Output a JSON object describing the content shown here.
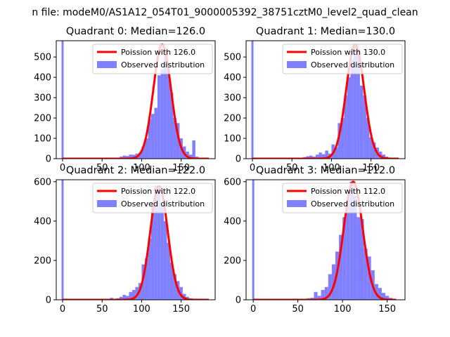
{
  "figure": {
    "suptitle": "n file: modeM0/AS1A12_054T01_9000005392_38751cztM0_level2_quad_clean"
  },
  "colors": {
    "fit": "#ff0000",
    "hist": "#8080ff",
    "axes": "#000000"
  },
  "chart_data": [
    {
      "type": "bar",
      "title": "Quadrant 0: Median=126.0",
      "median": 126.0,
      "xlim": [
        -8,
        193
      ],
      "ylim": [
        0,
        580
      ],
      "xticks": [
        0,
        50,
        100,
        150
      ],
      "yticks": [
        0,
        100,
        200,
        300,
        400,
        500
      ],
      "legend": [
        "Poission with 126.0",
        "Observed distribution"
      ],
      "legend_position": "top-right",
      "spike": {
        "x": 0,
        "value": 580
      },
      "hist_bins": [
        [
          0,
          4,
          3
        ],
        [
          4,
          8,
          1
        ],
        [
          8,
          12,
          1
        ],
        [
          12,
          16,
          1
        ],
        [
          16,
          20,
          1
        ],
        [
          20,
          24,
          1
        ],
        [
          24,
          28,
          1
        ],
        [
          28,
          32,
          1
        ],
        [
          32,
          36,
          1
        ],
        [
          36,
          40,
          1
        ],
        [
          40,
          44,
          1
        ],
        [
          44,
          48,
          1
        ],
        [
          48,
          52,
          1
        ],
        [
          52,
          56,
          1
        ],
        [
          56,
          60,
          1
        ],
        [
          60,
          64,
          2
        ],
        [
          64,
          68,
          3
        ],
        [
          68,
          72,
          5
        ],
        [
          72,
          76,
          10
        ],
        [
          76,
          80,
          15
        ],
        [
          80,
          84,
          13
        ],
        [
          84,
          88,
          20
        ],
        [
          88,
          92,
          19
        ],
        [
          92,
          96,
          25
        ],
        [
          96,
          100,
          30
        ],
        [
          100,
          104,
          60
        ],
        [
          104,
          108,
          100
        ],
        [
          108,
          112,
          195
        ],
        [
          112,
          116,
          220
        ],
        [
          116,
          120,
          250
        ],
        [
          120,
          124,
          410
        ],
        [
          124,
          128,
          440
        ],
        [
          128,
          132,
          520
        ],
        [
          132,
          136,
          435
        ],
        [
          136,
          140,
          325
        ],
        [
          140,
          144,
          200
        ],
        [
          144,
          148,
          175
        ],
        [
          148,
          152,
          100
        ],
        [
          152,
          156,
          60
        ],
        [
          156,
          160,
          35
        ],
        [
          160,
          164,
          20
        ],
        [
          164,
          168,
          90
        ],
        [
          168,
          172,
          10
        ]
      ],
      "fit_curve": {
        "label": "Poission with 126.0",
        "x_range": [
          0,
          185
        ],
        "peak": 562,
        "center": 126.0,
        "sigma": 11.2
      }
    },
    {
      "type": "bar",
      "title": "Quadrant 1: Median=130.0",
      "median": 130.0,
      "xlim": [
        -8,
        193
      ],
      "ylim": [
        0,
        580
      ],
      "xticks": [
        0,
        50,
        100,
        150
      ],
      "yticks": [
        0,
        100,
        200,
        300,
        400,
        500
      ],
      "legend": [
        "Poission with 130.0",
        "Observed distribution"
      ],
      "legend_position": "top-right",
      "spike": {
        "x": 0,
        "value": 580
      },
      "hist_bins": [
        [
          0,
          4,
          3
        ],
        [
          4,
          8,
          1
        ],
        [
          8,
          12,
          1
        ],
        [
          12,
          16,
          1
        ],
        [
          16,
          20,
          1
        ],
        [
          20,
          24,
          1
        ],
        [
          24,
          28,
          1
        ],
        [
          28,
          32,
          1
        ],
        [
          32,
          36,
          1
        ],
        [
          36,
          40,
          1
        ],
        [
          40,
          44,
          1
        ],
        [
          44,
          48,
          1
        ],
        [
          48,
          52,
          2
        ],
        [
          52,
          56,
          2
        ],
        [
          56,
          60,
          3
        ],
        [
          60,
          64,
          5
        ],
        [
          64,
          68,
          8
        ],
        [
          68,
          72,
          12
        ],
        [
          72,
          76,
          15
        ],
        [
          76,
          80,
          10
        ],
        [
          80,
          84,
          20
        ],
        [
          84,
          88,
          30
        ],
        [
          88,
          92,
          22
        ],
        [
          92,
          96,
          40
        ],
        [
          96,
          100,
          25
        ],
        [
          100,
          104,
          70
        ],
        [
          104,
          108,
          55
        ],
        [
          108,
          112,
          175
        ],
        [
          112,
          116,
          200
        ],
        [
          116,
          120,
          310
        ],
        [
          120,
          124,
          400
        ],
        [
          124,
          128,
          490
        ],
        [
          128,
          132,
          555
        ],
        [
          132,
          136,
          540
        ],
        [
          136,
          140,
          360
        ],
        [
          140,
          144,
          310
        ],
        [
          144,
          148,
          200
        ],
        [
          148,
          152,
          105
        ],
        [
          152,
          156,
          80
        ],
        [
          156,
          160,
          55
        ],
        [
          160,
          164,
          35
        ],
        [
          164,
          168,
          20
        ],
        [
          168,
          172,
          10
        ]
      ],
      "fit_curve": {
        "label": "Poission with 130.0",
        "x_range": [
          0,
          185
        ],
        "peak": 560,
        "center": 130.0,
        "sigma": 11.4
      }
    },
    {
      "type": "bar",
      "title": "Quadrant 2: Median=122.0",
      "median": 122.0,
      "xlim": [
        -8,
        193
      ],
      "ylim": [
        0,
        610
      ],
      "xticks": [
        0,
        50,
        100,
        150
      ],
      "yticks": [
        0,
        200,
        400,
        600
      ],
      "legend": [
        "Poission with 122.0",
        "Observed distribution"
      ],
      "legend_position": "top-right",
      "spike": {
        "x": 0,
        "value": 610
      },
      "hist_bins": [
        [
          0,
          4,
          3
        ],
        [
          4,
          8,
          1
        ],
        [
          8,
          12,
          1
        ],
        [
          12,
          16,
          1
        ],
        [
          16,
          20,
          1
        ],
        [
          20,
          24,
          1
        ],
        [
          24,
          28,
          1
        ],
        [
          28,
          32,
          1
        ],
        [
          32,
          36,
          1
        ],
        [
          36,
          40,
          1
        ],
        [
          40,
          44,
          1
        ],
        [
          44,
          48,
          1
        ],
        [
          48,
          52,
          1
        ],
        [
          52,
          56,
          1
        ],
        [
          56,
          60,
          1
        ],
        [
          60,
          64,
          10
        ],
        [
          64,
          68,
          5
        ],
        [
          68,
          72,
          8
        ],
        [
          72,
          76,
          15
        ],
        [
          76,
          80,
          25
        ],
        [
          80,
          84,
          20
        ],
        [
          84,
          88,
          40
        ],
        [
          88,
          92,
          50
        ],
        [
          92,
          96,
          65
        ],
        [
          96,
          100,
          85
        ],
        [
          100,
          104,
          180
        ],
        [
          104,
          108,
          210
        ],
        [
          108,
          112,
          310
        ],
        [
          112,
          116,
          500
        ],
        [
          116,
          120,
          580
        ],
        [
          120,
          124,
          560
        ],
        [
          124,
          128,
          480
        ],
        [
          128,
          132,
          400
        ],
        [
          132,
          136,
          290
        ],
        [
          136,
          140,
          190
        ],
        [
          140,
          144,
          130
        ],
        [
          144,
          148,
          95
        ],
        [
          148,
          152,
          65
        ],
        [
          152,
          156,
          30
        ],
        [
          156,
          160,
          15
        ],
        [
          160,
          164,
          8
        ],
        [
          164,
          168,
          4
        ],
        [
          168,
          172,
          2
        ]
      ],
      "fit_curve": {
        "label": "Poission with 122.0",
        "x_range": [
          0,
          185
        ],
        "peak": 578,
        "center": 122.0,
        "sigma": 11.0
      }
    },
    {
      "type": "bar",
      "title": "Quadrant 3: Median=112.0",
      "median": 112.0,
      "xlim": [
        -8,
        170
      ],
      "ylim": [
        0,
        610
      ],
      "xticks": [
        0,
        50,
        100,
        150
      ],
      "yticks": [
        0,
        200,
        400,
        600
      ],
      "legend": [
        "Poission with 112.0",
        "Observed distribution"
      ],
      "legend_position": "top-right",
      "spike": {
        "x": 0,
        "value": 610
      },
      "hist_bins": [
        [
          0,
          4,
          3
        ],
        [
          4,
          8,
          1
        ],
        [
          8,
          12,
          1
        ],
        [
          12,
          16,
          1
        ],
        [
          16,
          20,
          1
        ],
        [
          20,
          24,
          1
        ],
        [
          24,
          28,
          1
        ],
        [
          28,
          32,
          1
        ],
        [
          32,
          36,
          1
        ],
        [
          36,
          40,
          1
        ],
        [
          40,
          44,
          1
        ],
        [
          44,
          48,
          1
        ],
        [
          48,
          52,
          2
        ],
        [
          52,
          56,
          2
        ],
        [
          56,
          60,
          3
        ],
        [
          60,
          64,
          8
        ],
        [
          64,
          68,
          10
        ],
        [
          68,
          72,
          40
        ],
        [
          72,
          76,
          20
        ],
        [
          76,
          80,
          50
        ],
        [
          80,
          84,
          65
        ],
        [
          84,
          88,
          130
        ],
        [
          88,
          92,
          180
        ],
        [
          92,
          96,
          245
        ],
        [
          96,
          100,
          330
        ],
        [
          100,
          104,
          420
        ],
        [
          104,
          108,
          510
        ],
        [
          108,
          112,
          600
        ],
        [
          112,
          116,
          530
        ],
        [
          116,
          120,
          420
        ],
        [
          120,
          124,
          410
        ],
        [
          124,
          128,
          260
        ],
        [
          128,
          132,
          220
        ],
        [
          132,
          136,
          150
        ],
        [
          136,
          140,
          80
        ],
        [
          140,
          144,
          60
        ],
        [
          144,
          148,
          35
        ],
        [
          148,
          152,
          20
        ],
        [
          152,
          156,
          10
        ],
        [
          156,
          160,
          5
        ]
      ],
      "fit_curve": {
        "label": "Poission with 112.0",
        "x_range": [
          0,
          160
        ],
        "peak": 600,
        "center": 112.0,
        "sigma": 10.6
      }
    }
  ]
}
